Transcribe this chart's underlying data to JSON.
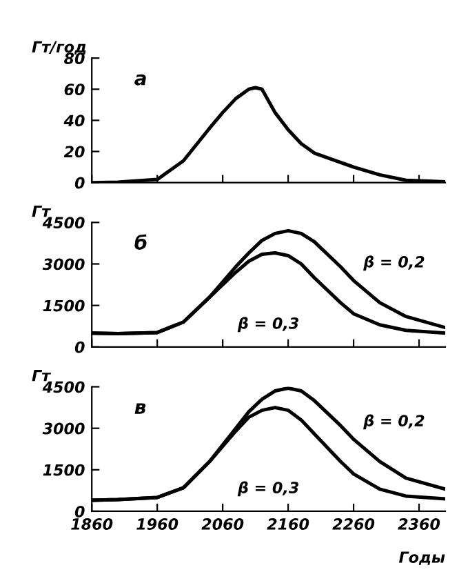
{
  "chart_data": [
    {
      "type": "line",
      "ylabel": "Гт/год",
      "annotations": [
        "а"
      ],
      "x": [
        1860,
        1900,
        1960,
        2000,
        2040,
        2060,
        2080,
        2100,
        2110,
        2120,
        2140,
        2160,
        2180,
        2200,
        2240,
        2260,
        2300,
        2340,
        2400
      ],
      "series": [
        {
          "color": "#000000",
          "values": [
            0,
            0.3,
            2,
            14,
            35,
            45,
            54,
            60,
            61,
            60,
            45,
            34,
            25,
            19,
            13,
            10,
            5,
            1.5,
            0.5
          ]
        }
      ],
      "xlim": [
        1860,
        2400
      ],
      "xticks": [
        1860,
        1960,
        2060,
        2160,
        2260,
        2360
      ],
      "ylim": [
        0,
        80
      ],
      "yticks": [
        0,
        20,
        40,
        60,
        80
      ],
      "tick_labels": "y"
    },
    {
      "type": "line",
      "ylabel": "Гт",
      "annotations": [
        "б"
      ],
      "x": [
        1860,
        1900,
        1960,
        2000,
        2040,
        2080,
        2100,
        2120,
        2140,
        2160,
        2180,
        2200,
        2240,
        2260,
        2300,
        2340,
        2400
      ],
      "series": [
        {
          "name": "β = 0,2",
          "color": "#000000",
          "values": [
            500,
            480,
            520,
            900,
            1800,
            2900,
            3400,
            3850,
            4100,
            4200,
            4100,
            3800,
            2900,
            2400,
            1600,
            1100,
            700
          ]
        },
        {
          "name": "β = 0,3",
          "color": "#000000",
          "values": [
            500,
            480,
            520,
            900,
            1800,
            2700,
            3100,
            3350,
            3400,
            3300,
            3000,
            2500,
            1600,
            1200,
            800,
            600,
            500
          ]
        }
      ],
      "xlim": [
        1860,
        2400
      ],
      "xticks": [
        1860,
        1960,
        2060,
        2160,
        2260,
        2360
      ],
      "ylim": [
        0,
        4500
      ],
      "yticks": [
        0,
        1500,
        3000,
        4500
      ],
      "tick_labels": "y"
    },
    {
      "type": "line",
      "ylabel": "Гт",
      "xlabel": "Годы",
      "annotations": [
        "в"
      ],
      "x": [
        1860,
        1900,
        1960,
        2000,
        2040,
        2080,
        2100,
        2120,
        2140,
        2160,
        2180,
        2200,
        2240,
        2260,
        2300,
        2340,
        2400
      ],
      "series": [
        {
          "name": "β = 0,2",
          "color": "#000000",
          "values": [
            400,
            420,
            500,
            850,
            1800,
            3000,
            3600,
            4050,
            4350,
            4450,
            4350,
            4000,
            3100,
            2600,
            1800,
            1200,
            800
          ]
        },
        {
          "name": "β = 0,3",
          "color": "#000000",
          "values": [
            400,
            420,
            500,
            850,
            1800,
            2900,
            3400,
            3650,
            3750,
            3650,
            3300,
            2800,
            1800,
            1350,
            800,
            550,
            450
          ]
        }
      ],
      "xlim": [
        1860,
        2400
      ],
      "xticks": [
        1860,
        1960,
        2060,
        2160,
        2260,
        2360
      ],
      "ylim": [
        0,
        4500
      ],
      "yticks": [
        0,
        1500,
        3000,
        4500
      ]
    }
  ]
}
